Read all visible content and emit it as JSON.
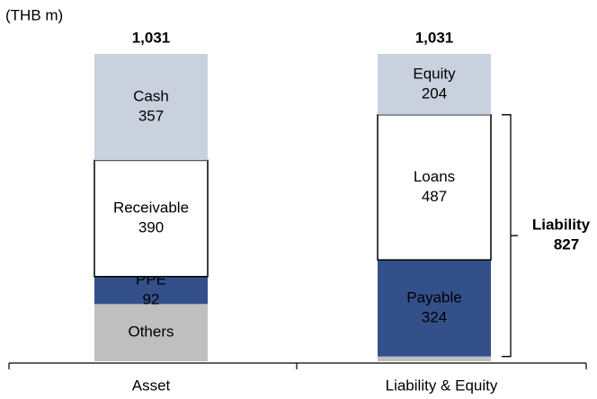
{
  "chart_data": {
    "type": "stacked_bar",
    "unit_label": "(THB m)",
    "categories": [
      "Asset",
      "Liability & Equity"
    ],
    "stacks": [
      {
        "segments": [
          {
            "name": "Others",
            "value": 192,
            "color": "#bfbfbf"
          },
          {
            "name": "PPE",
            "value": 92,
            "color": "#34508a"
          },
          {
            "name": "Receivable",
            "value": 390,
            "color": "#ffffff"
          },
          {
            "name": "Cash",
            "value": 357,
            "color": "#c9d1df"
          }
        ]
      },
      {
        "segments": [
          {
            "value": 16,
            "color": "#bfbfbf"
          },
          {
            "name": "Payable",
            "value": 324,
            "color": "#34508a"
          },
          {
            "name": "Loans",
            "value": 487,
            "color": "#ffffff"
          },
          {
            "name": "Equity",
            "value": 204,
            "color": "#c9d1df"
          }
        ]
      }
    ],
    "totals": {
      "values": [
        1031,
        1031
      ],
      "value_labels": [
        "1,031",
        "1,031"
      ]
    },
    "ylim": [
      0,
      1031
    ],
    "annotation": {
      "label": "Liability",
      "value": 827
    }
  }
}
